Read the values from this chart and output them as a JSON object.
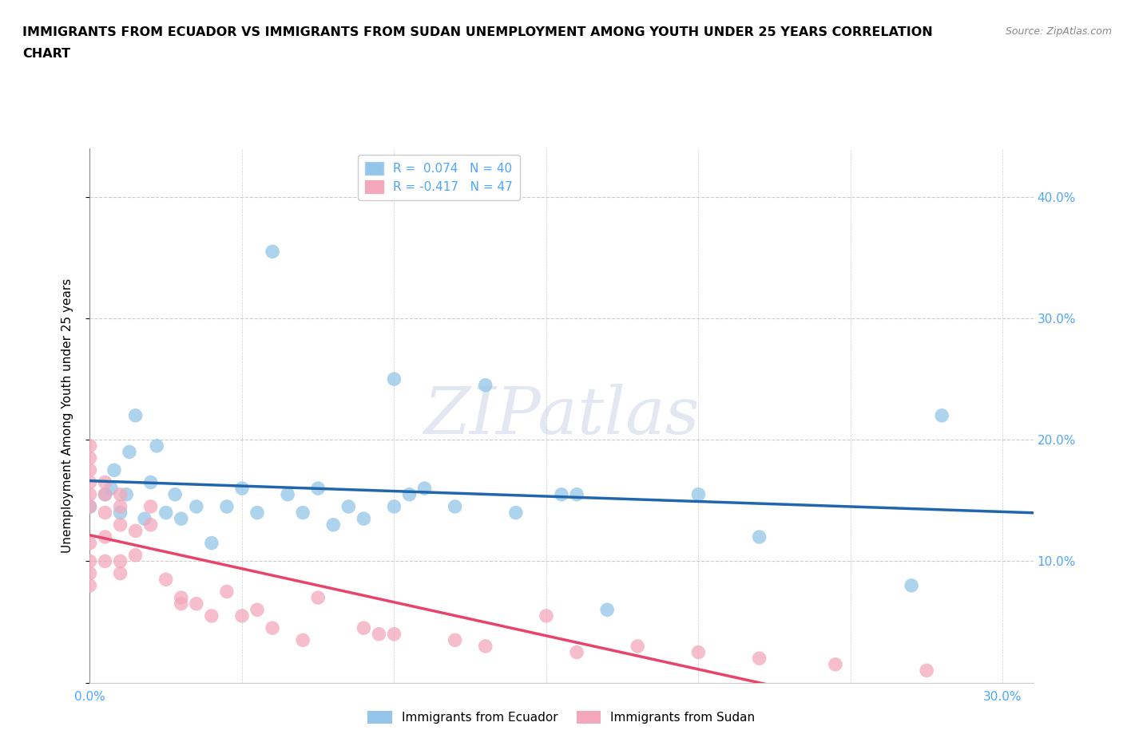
{
  "title_line1": "IMMIGRANTS FROM ECUADOR VS IMMIGRANTS FROM SUDAN UNEMPLOYMENT AMONG YOUTH UNDER 25 YEARS CORRELATION",
  "title_line2": "CHART",
  "source_text": "Source: ZipAtlas.com",
  "ylabel": "Unemployment Among Youth under 25 years",
  "xlim": [
    0.0,
    0.31
  ],
  "ylim": [
    0.0,
    0.44
  ],
  "yticks": [
    0.0,
    0.1,
    0.2,
    0.3,
    0.4
  ],
  "xticks": [
    0.0,
    0.05,
    0.1,
    0.15,
    0.2,
    0.25,
    0.3
  ],
  "ecuador_R": 0.074,
  "ecuador_N": 40,
  "sudan_R": -0.417,
  "sudan_N": 47,
  "ecuador_color": "#92c5e8",
  "sudan_color": "#f4a7bb",
  "ecuador_line_color": "#2166ac",
  "sudan_line_color": "#e8436a",
  "background_color": "#ffffff",
  "watermark": "ZIPatlas",
  "ecuador_points_x": [
    0.0,
    0.005,
    0.007,
    0.008,
    0.01,
    0.012,
    0.013,
    0.015,
    0.018,
    0.02,
    0.022,
    0.025,
    0.028,
    0.03,
    0.035,
    0.04,
    0.045,
    0.05,
    0.055,
    0.06,
    0.065,
    0.07,
    0.075,
    0.08,
    0.085,
    0.09,
    0.1,
    0.1,
    0.105,
    0.11,
    0.12,
    0.13,
    0.14,
    0.155,
    0.16,
    0.17,
    0.2,
    0.22,
    0.27,
    0.28
  ],
  "ecuador_points_y": [
    0.145,
    0.155,
    0.16,
    0.175,
    0.14,
    0.155,
    0.19,
    0.22,
    0.135,
    0.165,
    0.195,
    0.14,
    0.155,
    0.135,
    0.145,
    0.115,
    0.145,
    0.16,
    0.14,
    0.355,
    0.155,
    0.14,
    0.16,
    0.13,
    0.145,
    0.135,
    0.25,
    0.145,
    0.155,
    0.16,
    0.145,
    0.245,
    0.14,
    0.155,
    0.155,
    0.06,
    0.155,
    0.12,
    0.08,
    0.22
  ],
  "sudan_points_x": [
    0.0,
    0.0,
    0.0,
    0.0,
    0.0,
    0.0,
    0.0,
    0.0,
    0.0,
    0.0,
    0.005,
    0.005,
    0.005,
    0.005,
    0.005,
    0.01,
    0.01,
    0.01,
    0.01,
    0.01,
    0.015,
    0.015,
    0.02,
    0.02,
    0.025,
    0.03,
    0.03,
    0.035,
    0.04,
    0.045,
    0.05,
    0.055,
    0.06,
    0.07,
    0.075,
    0.09,
    0.095,
    0.1,
    0.12,
    0.13,
    0.15,
    0.16,
    0.18,
    0.2,
    0.22,
    0.245,
    0.275
  ],
  "sudan_points_y": [
    0.145,
    0.155,
    0.165,
    0.175,
    0.185,
    0.195,
    0.08,
    0.09,
    0.1,
    0.115,
    0.14,
    0.155,
    0.165,
    0.1,
    0.12,
    0.09,
    0.1,
    0.13,
    0.145,
    0.155,
    0.105,
    0.125,
    0.13,
    0.145,
    0.085,
    0.07,
    0.065,
    0.065,
    0.055,
    0.075,
    0.055,
    0.06,
    0.045,
    0.035,
    0.07,
    0.045,
    0.04,
    0.04,
    0.035,
    0.03,
    0.055,
    0.025,
    0.03,
    0.025,
    0.02,
    0.015,
    0.01
  ]
}
